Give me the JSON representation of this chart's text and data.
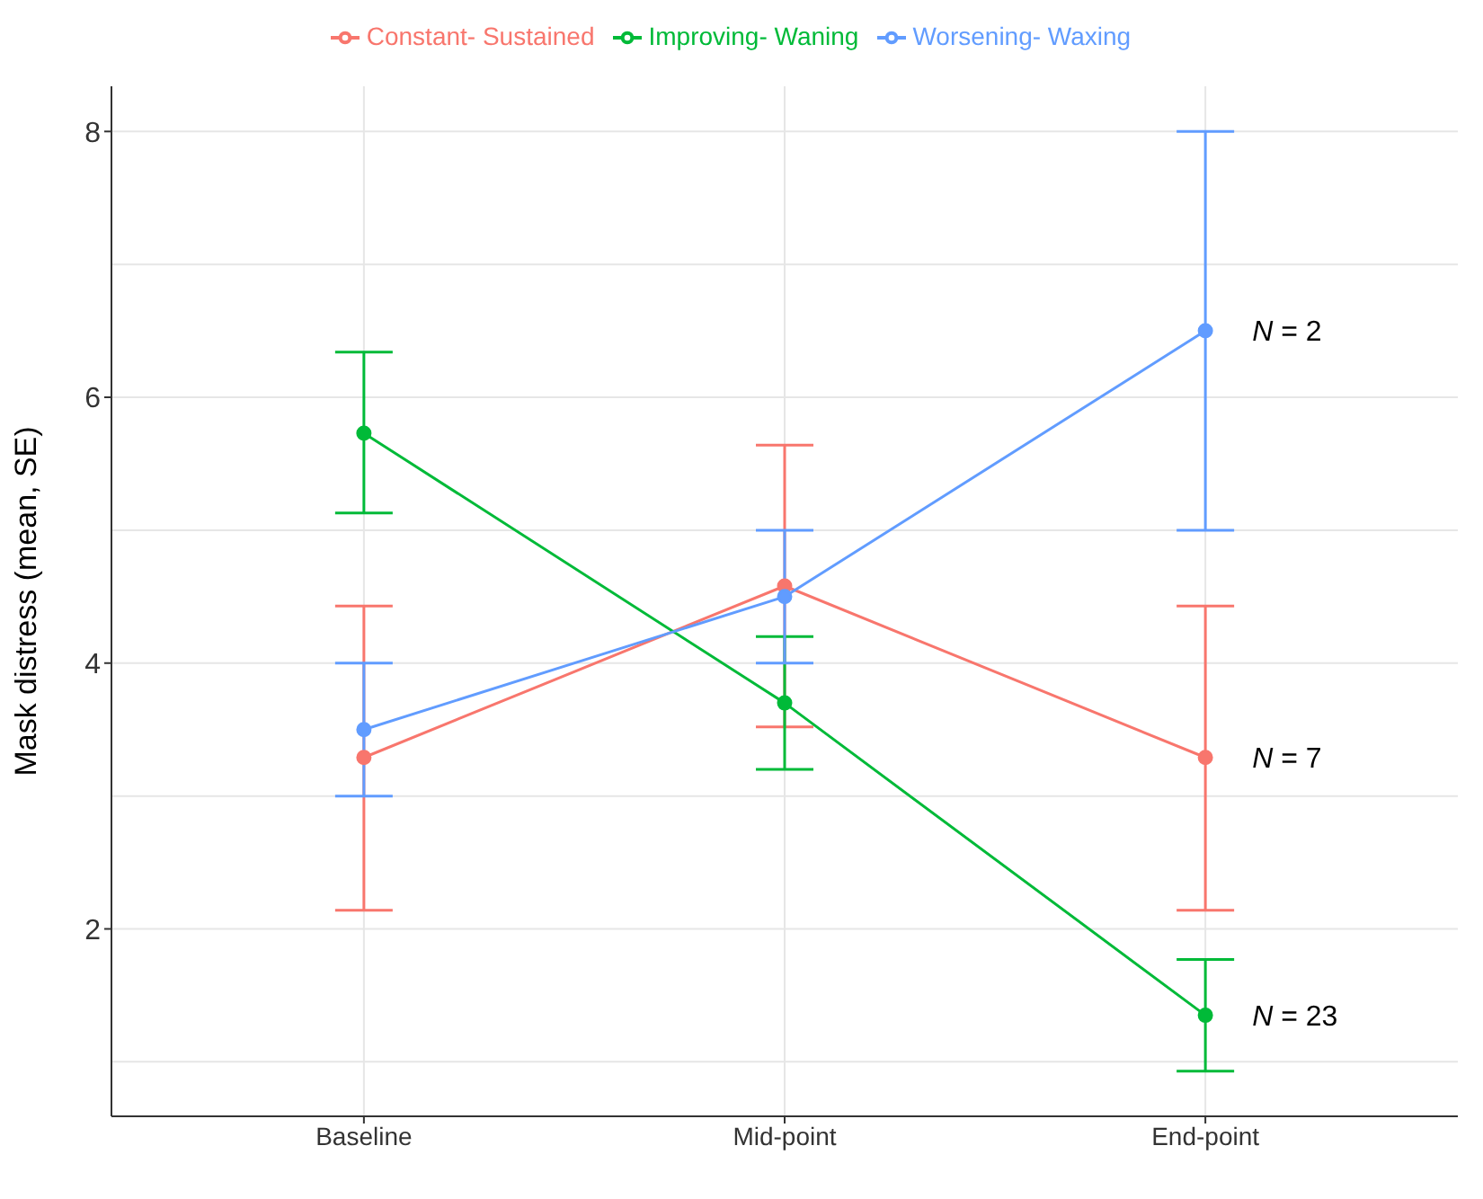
{
  "chart_data": {
    "type": "line",
    "ylabel": "Mask distress (mean, SE)",
    "categories": [
      "Baseline",
      "Mid-point",
      "End-point"
    ],
    "series": [
      {
        "name": "Constant- Sustained",
        "color": "#f8766d",
        "values": [
          3.29,
          4.58,
          3.29
        ],
        "errors": [
          [
            2.14,
            4.43
          ],
          [
            3.52,
            5.64
          ],
          [
            2.14,
            4.43
          ]
        ]
      },
      {
        "name": "Improving- Waning",
        "color": "#00ba38",
        "values": [
          5.73,
          3.7,
          1.35
        ],
        "errors": [
          [
            5.13,
            6.34
          ],
          [
            3.2,
            4.2
          ],
          [
            0.93,
            1.77
          ]
        ]
      },
      {
        "name": "Worsening- Waxing",
        "color": "#619cff",
        "values": [
          3.5,
          4.5,
          6.5
        ],
        "errors": [
          [
            3.0,
            4.0
          ],
          [
            4.0,
            5.0
          ],
          [
            5.0,
            8.0
          ]
        ]
      }
    ],
    "ylim": [
      0.59,
      8.34
    ],
    "yticks": [
      2,
      4,
      6,
      8
    ],
    "grid": true,
    "legend": "top",
    "marker": "circle",
    "line_style": "solid",
    "annotations": [
      {
        "text": "N = 2",
        "x": "End-point",
        "y": 6.5
      },
      {
        "text": "N = 7",
        "x": "End-point",
        "y": 3.29
      },
      {
        "text": "N = 23",
        "x": "End-point",
        "y": 1.35
      }
    ]
  }
}
